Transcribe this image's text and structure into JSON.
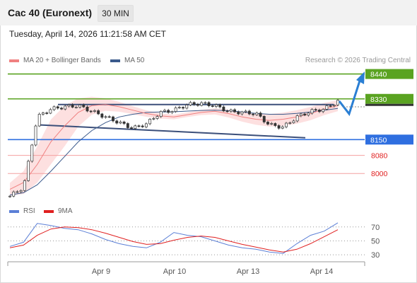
{
  "header": {
    "title": "Cac 40 (Euronext)",
    "interval": "30 MIN"
  },
  "timestamp": "Tuesday, April 14, 2026 11:21:58 AM CET",
  "legend": {
    "ma20_label": "MA 20 + Bollinger Bands",
    "ma50_label": "MA 50",
    "credit": "Research © 2026 Trading Central",
    "rsi_label": "RSI",
    "ma9_label": "9MA"
  },
  "colors": {
    "resistance": "#5aa321",
    "support": "#2f6fe0",
    "pivot_light": "#e06666",
    "bollinger_fill": "#fde0e0",
    "ma20": "#f08080",
    "ma50": "#3b5a8c",
    "trend": "#3b4f7a",
    "arrow": "#2a7fd4",
    "rsi": "#5b7fd6",
    "rsi_ma": "#e02020"
  },
  "chart_data": [
    {
      "type": "candlestick",
      "title": "Cac 40 (Euronext)",
      "xlabel": "",
      "ylabel": "",
      "x_ticks": [
        "Apr 9",
        "Apr 10",
        "Apr 13",
        "Apr 14"
      ],
      "ylim": [
        7860,
        8470
      ],
      "levels": [
        {
          "value": 8440,
          "label": "8440",
          "kind": "resistance"
        },
        {
          "value": 8330,
          "label": "8330",
          "kind": "resistance"
        },
        {
          "value": 8150,
          "label": "8150",
          "kind": "support"
        },
        {
          "value": 8080,
          "label": "8080",
          "kind": "minor"
        },
        {
          "value": 8000,
          "label": "8000",
          "kind": "minor"
        }
      ],
      "series": [
        {
          "name": "MA 20 + Bollinger Bands",
          "values": [
            7930,
            7960,
            8040,
            8140,
            8210,
            8270,
            8300,
            8305,
            8295,
            8280,
            8265,
            8255,
            8250,
            8260,
            8270,
            8275,
            8265,
            8250,
            8240,
            8235,
            8240,
            8250,
            8265,
            8285,
            8300
          ]
        },
        {
          "name": "MA 50",
          "values": [
            7905,
            7915,
            7950,
            8010,
            8075,
            8140,
            8190,
            8225,
            8250,
            8262,
            8270,
            8272,
            8273,
            8276,
            8279,
            8280,
            8278,
            8272,
            8266,
            8262,
            8262,
            8266,
            8272,
            8280,
            8288
          ]
        },
        {
          "name": "Close",
          "values": [
            7900,
            7940,
            8250,
            8285,
            8295,
            8300,
            8275,
            8250,
            8225,
            8200,
            8220,
            8270,
            8280,
            8305,
            8310,
            8300,
            8275,
            8270,
            8265,
            8215,
            8205,
            8250,
            8275,
            8285,
            8320
          ]
        }
      ]
    },
    {
      "type": "line",
      "title": "RSI",
      "ylim": [
        20,
        85
      ],
      "y_ticks": [
        70,
        50,
        30
      ],
      "series": [
        {
          "name": "RSI",
          "values": [
            42,
            48,
            75,
            72,
            68,
            66,
            60,
            52,
            46,
            42,
            40,
            48,
            62,
            58,
            56,
            50,
            44,
            40,
            38,
            34,
            32,
            46,
            58,
            64,
            76
          ]
        },
        {
          "name": "9MA",
          "values": [
            40,
            44,
            58,
            67,
            70,
            69,
            66,
            61,
            55,
            49,
            45,
            46,
            51,
            55,
            57,
            55,
            50,
            45,
            41,
            37,
            34,
            38,
            46,
            56,
            66
          ]
        }
      ]
    }
  ]
}
